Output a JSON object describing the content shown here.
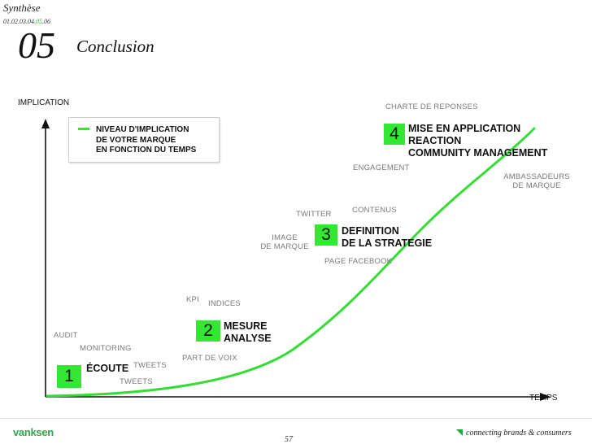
{
  "header": {
    "section": "Synthèse",
    "breadcrumb_pre": "01.02.03.04.",
    "breadcrumb_current": "05",
    "breadcrumb_post": ".06",
    "number": "05",
    "title": "Conclusion"
  },
  "axes": {
    "y_label": "IMPLICATION",
    "x_label": "TEMPS"
  },
  "legend": {
    "line1": "NIVEAU D'IMPLICATION",
    "line2": "DE VOTRE MARQUE",
    "line3": "EN FONCTION DU TEMPS"
  },
  "stages": [
    {
      "number": "1",
      "line1": "ÉCOUTE",
      "line2": ""
    },
    {
      "number": "2",
      "line1": "MESURE",
      "line2": "ANALYSE"
    },
    {
      "number": "3",
      "line1": "DEFINITION",
      "line2": "DE LA STRATEGIE"
    },
    {
      "number": "4",
      "line1": "MISE EN APPLICATION",
      "line2": "REACTION",
      "line3": "COMMUNITY MANAGEMENT"
    }
  ],
  "labels": {
    "audit": "AUDIT",
    "monitoring": "MONITORING",
    "tweets_a": "TWEETS",
    "tweets_b": "TWEETS",
    "kpi": "KPI",
    "indices": "INDICES",
    "part_de_voix": "PART DE VOIX",
    "twitter": "TWITTER",
    "contenus": "CONTENUS",
    "image_de_marque_1": "IMAGE",
    "image_de_marque_2": "DE MARQUE",
    "page_facebook": "PAGE FACEBOOK",
    "charte": "CHARTE DE REPONSES",
    "engagement": "ENGAGEMENT",
    "ambassadeurs_1": "AMBASSADEURS",
    "ambassadeurs_2": "DE MARQUE"
  },
  "footer": {
    "logo": "vanksen",
    "page": "57",
    "tagline": "connecting brands & consumers"
  },
  "colors": {
    "accent_green": "#33e833",
    "curve_green": "#33dd33"
  }
}
